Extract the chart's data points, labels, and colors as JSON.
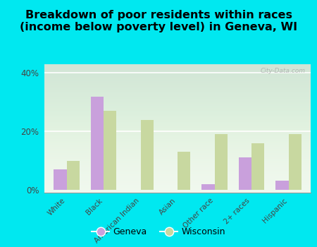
{
  "title": "Breakdown of poor residents within races\n(income below poverty level) in Geneva, WI",
  "categories": [
    "White",
    "Black",
    "American Indian",
    "Asian",
    "Other race",
    "2+ races",
    "Hispanic"
  ],
  "geneva": [
    7,
    32,
    0,
    0,
    2,
    11,
    3
  ],
  "wisconsin": [
    10,
    27,
    24,
    13,
    19,
    16,
    19
  ],
  "geneva_color": "#c9a0dc",
  "wisconsin_color": "#c8d8a0",
  "bg_outer": "#00e8f0",
  "yticks": [
    0,
    20,
    40
  ],
  "ytick_labels": [
    "0%",
    "20%",
    "40%"
  ],
  "bar_width": 0.35,
  "title_fontsize": 11.5,
  "legend_labels": [
    "Geneva",
    "Wisconsin"
  ],
  "watermark": "City-Data.com"
}
